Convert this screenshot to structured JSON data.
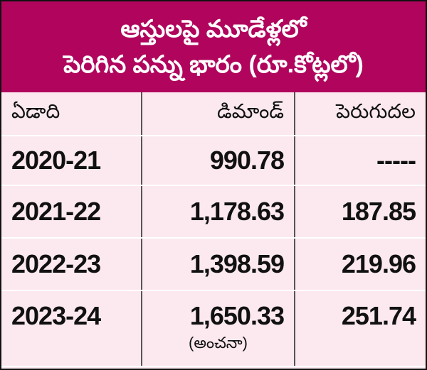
{
  "header": {
    "title": [
      "ఆస్తులపై మూడేళ్లలో",
      "పెరిగిన పన్ను భారం (రూ.కోట్లలో)"
    ]
  },
  "table": {
    "columns": [
      "ఏడాది",
      "డిమాండ్",
      "పెరుగుదల"
    ],
    "rows": [
      [
        "2020-21",
        "990.78",
        "-----"
      ],
      [
        "2021-22",
        "1,178.63",
        "187.85"
      ],
      [
        "2022-23",
        "1,398.59",
        "219.96"
      ],
      [
        "2023-24",
        "1,650.33",
        "251.74"
      ]
    ],
    "note": "(అంచనా)"
  }
}
